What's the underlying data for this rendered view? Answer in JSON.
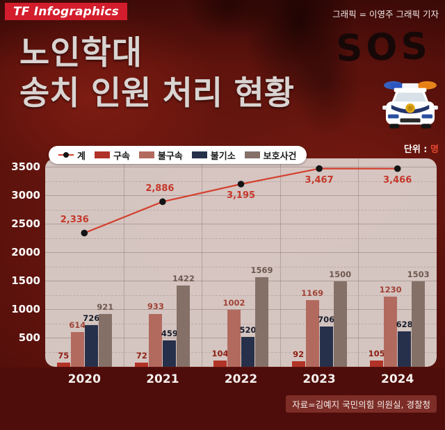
{
  "header": {
    "logo_text": "TF Infographics",
    "credit": "그래픽 = 이영주 그래픽 기자"
  },
  "title": {
    "line1": "노인학대",
    "line2": "송치 인원 처리 현황"
  },
  "sos_text": "SOS",
  "unit_label": {
    "prefix": "단위 : ",
    "suffix": "명"
  },
  "source_note": "자료=김예지 국민의힘 의원실, 경찰청",
  "chart_data": {
    "type": "bar+line",
    "title": "노인학대 송치 인원 처리 현황",
    "unit": "명",
    "categories": [
      "2020",
      "2021",
      "2022",
      "2023",
      "2024"
    ],
    "line_series": {
      "name": "계",
      "values": [
        2336,
        2886,
        3195,
        3467,
        3466
      ],
      "color": "#d4402e",
      "dot_color": "#141414",
      "label_color": "#c5372a"
    },
    "bar_series": [
      {
        "name": "구속",
        "values": [
          75,
          72,
          104,
          92,
          105
        ],
        "color": "#b13327",
        "label_color": "#8e1f13"
      },
      {
        "name": "불구속",
        "values": [
          614,
          933,
          1002,
          1169,
          1230
        ],
        "color": "#b26a5f",
        "label_color": "#a04337"
      },
      {
        "name": "불기소",
        "values": [
          726,
          459,
          520,
          706,
          628
        ],
        "color": "#27304a",
        "label_color": "#181d2c"
      },
      {
        "name": "보호사건",
        "values": [
          921,
          1422,
          1569,
          1500,
          1503
        ],
        "color": "#857068",
        "label_color": "#6d584f"
      }
    ],
    "ylim": [
      0,
      3500
    ],
    "yticks": [
      500,
      1000,
      1500,
      2000,
      2500,
      3000,
      3500
    ],
    "grid": {
      "h_solid_step": 500,
      "h_dashed_step": 250,
      "v_dividers": true
    },
    "legend_position": "top-left",
    "line_label_placement": [
      "above",
      "above",
      "below",
      "below",
      "below"
    ],
    "plot_bg": "#ded3cf"
  }
}
